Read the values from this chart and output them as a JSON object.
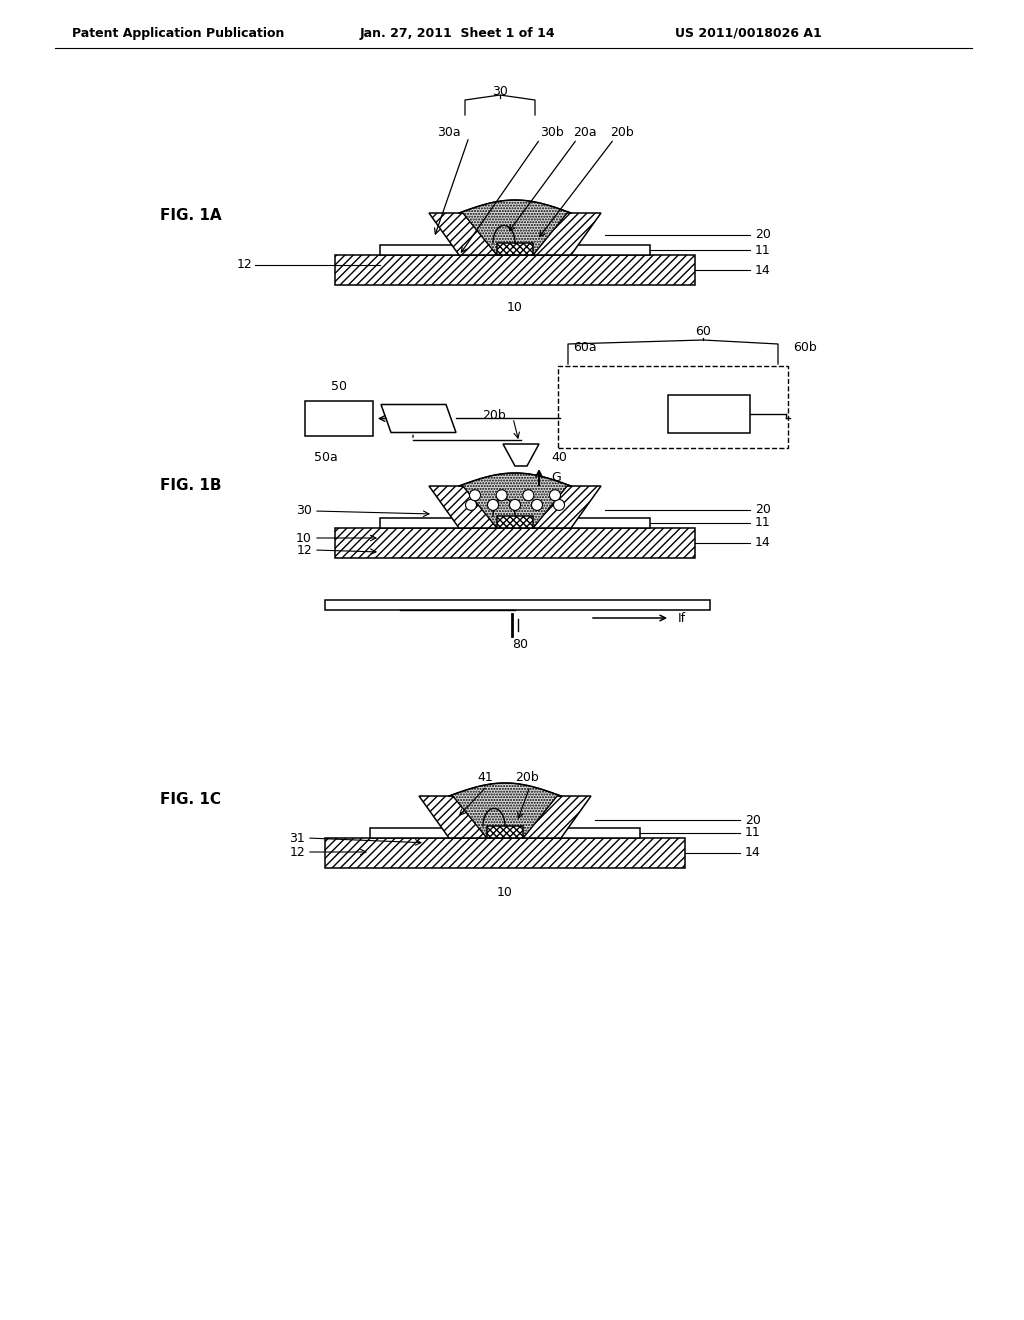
{
  "bg_color": "#ffffff",
  "header_text": "Patent Application Publication",
  "header_date": "Jan. 27, 2011  Sheet 1 of 14",
  "header_patent": "US 2011/0018026 A1",
  "fig1a_label": "FIG. 1A",
  "fig1b_label": "FIG. 1B",
  "fig1c_label": "FIG. 1C",
  "line_color": "#000000",
  "page_width": 10.24,
  "page_height": 13.2
}
